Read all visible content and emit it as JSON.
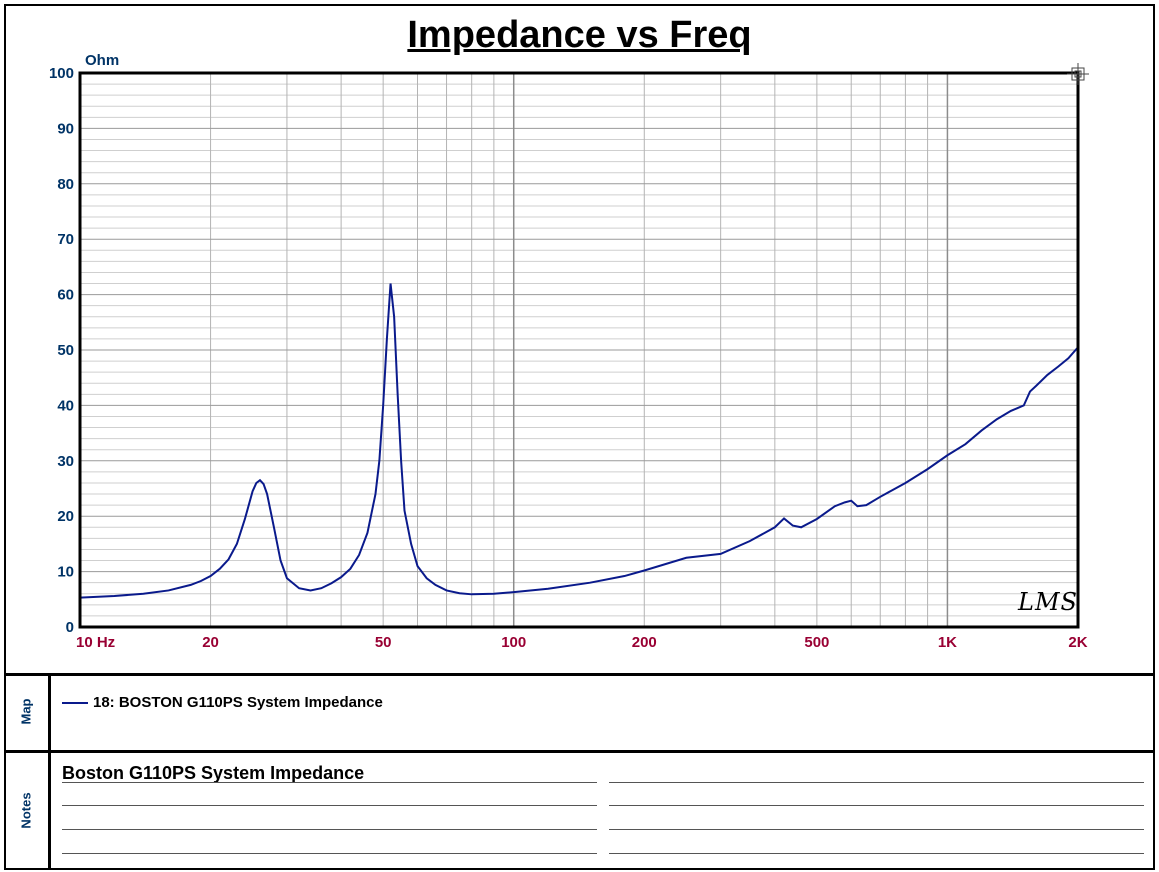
{
  "chart_data": {
    "type": "line",
    "title": "Impedance vs Freq",
    "ylabel": "Ohm",
    "xscale": "log",
    "xlim": [
      10,
      2000
    ],
    "ylim": [
      0,
      100
    ],
    "grid": true,
    "yticks": [
      0,
      10,
      20,
      30,
      40,
      50,
      60,
      70,
      80,
      90,
      100
    ],
    "xtick_labels": [
      {
        "value": 10,
        "label": "10 Hz"
      },
      {
        "value": 20,
        "label": "20"
      },
      {
        "value": 50,
        "label": "50"
      },
      {
        "value": 100,
        "label": "100"
      },
      {
        "value": 200,
        "label": "200"
      },
      {
        "value": 500,
        "label": "500"
      },
      {
        "value": 1000,
        "label": "1K"
      },
      {
        "value": 2000,
        "label": "2K"
      }
    ],
    "series": [
      {
        "name": "18: BOSTON G110PS  System Impedance",
        "color": "#0a1a8c",
        "x": [
          10,
          12,
          14,
          16,
          18,
          19,
          20,
          21,
          22,
          23,
          24,
          25,
          25.5,
          26,
          26.5,
          27,
          28,
          29,
          30,
          32,
          34,
          36,
          38,
          40,
          42,
          44,
          46,
          48,
          49,
          50,
          51,
          52,
          53,
          54,
          55,
          56,
          58,
          60,
          63,
          66,
          70,
          75,
          80,
          90,
          100,
          120,
          150,
          180,
          200,
          250,
          300,
          350,
          400,
          420,
          440,
          460,
          500,
          550,
          580,
          600,
          620,
          650,
          700,
          800,
          900,
          1000,
          1100,
          1200,
          1300,
          1400,
          1500,
          1550,
          1600,
          1700,
          1800,
          1900,
          2000
        ],
        "y": [
          5.3,
          5.6,
          6.0,
          6.6,
          7.6,
          8.3,
          9.2,
          10.5,
          12.2,
          15.0,
          19.5,
          24.5,
          26.0,
          26.5,
          25.8,
          24.0,
          18.0,
          12.0,
          8.8,
          7.0,
          6.6,
          7.0,
          7.9,
          9.0,
          10.5,
          13.0,
          17.0,
          24.0,
          30.0,
          40.0,
          52.0,
          62.0,
          56.0,
          42.0,
          30.0,
          21.0,
          15.0,
          11.0,
          8.8,
          7.6,
          6.6,
          6.1,
          5.9,
          6.0,
          6.3,
          6.9,
          8.0,
          9.2,
          10.2,
          12.5,
          13.2,
          15.5,
          18.0,
          19.6,
          18.3,
          18.0,
          19.5,
          21.8,
          22.5,
          22.8,
          21.8,
          22.0,
          23.5,
          26.0,
          28.5,
          31.0,
          33.0,
          35.5,
          37.5,
          39.0,
          40.0,
          42.5,
          43.5,
          45.5,
          47.0,
          48.5,
          50.5
        ]
      }
    ]
  },
  "map": {
    "label": "Map",
    "legend_text": "18: BOSTON G110PS  System Impedance"
  },
  "notes": {
    "label": "Notes",
    "text": "Boston G110PS System Impedance"
  },
  "logo": "LMS",
  "colors": {
    "axis_labels": "#003366",
    "x_tick_labels": "#990033",
    "curve": "#0a1a8c",
    "grid": "#a8a8a8"
  }
}
